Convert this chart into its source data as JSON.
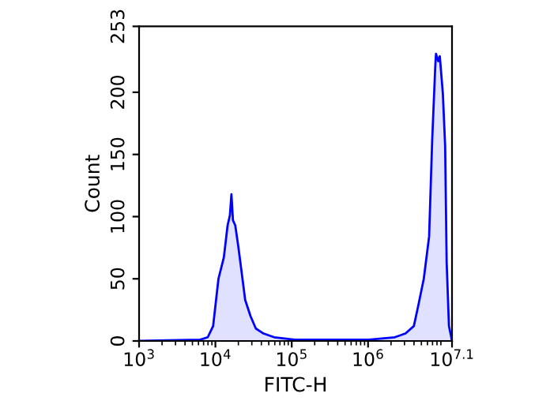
{
  "chart_data": {
    "type": "area",
    "xlabel": "FITC-H",
    "ylabel": "Count",
    "log": "x",
    "xlim": [
      1000,
      12589254
    ],
    "xticks": [
      {
        "value": 1000,
        "label": "10$^{3}$"
      },
      {
        "value": 10000,
        "label": "10$^{4}$"
      },
      {
        "value": 100000,
        "label": "10$^{5}$"
      },
      {
        "value": 1000000,
        "label": "10$^{6}$"
      },
      {
        "value": 12589254,
        "label": "10$^{7.1}$"
      }
    ],
    "ylim": [
      0,
      253
    ],
    "yticks": [
      0,
      50,
      100,
      150,
      200,
      253
    ],
    "grid": false,
    "legend": false,
    "series": [
      {
        "color": "#0000ff",
        "x": [
          1000,
          6310,
          7943,
          9333,
          10965,
          12882,
          14454,
          15488,
          16218,
          16982,
          18197,
          19953,
          21878,
          24547,
          28840,
          33884,
          42658,
          58884,
          109648,
          1023293,
          2238721,
          3090295,
          3981072,
          4570882,
          5370318,
          6309573,
          6918310,
          7585776,
          7762471,
          8317638,
          8709636,
          9549926,
          10232930,
          10715193,
          11481536,
          12302688,
          12589254
        ],
        "values": [
          0,
          1,
          3,
          12,
          50,
          67,
          93,
          101,
          118,
          97,
          93,
          76,
          57,
          33,
          20,
          10,
          6,
          3,
          1,
          1,
          3,
          6,
          12,
          29,
          50,
          84,
          161,
          220,
          231,
          225,
          229,
          199,
          157,
          63,
          12,
          3,
          0
        ]
      }
    ]
  }
}
